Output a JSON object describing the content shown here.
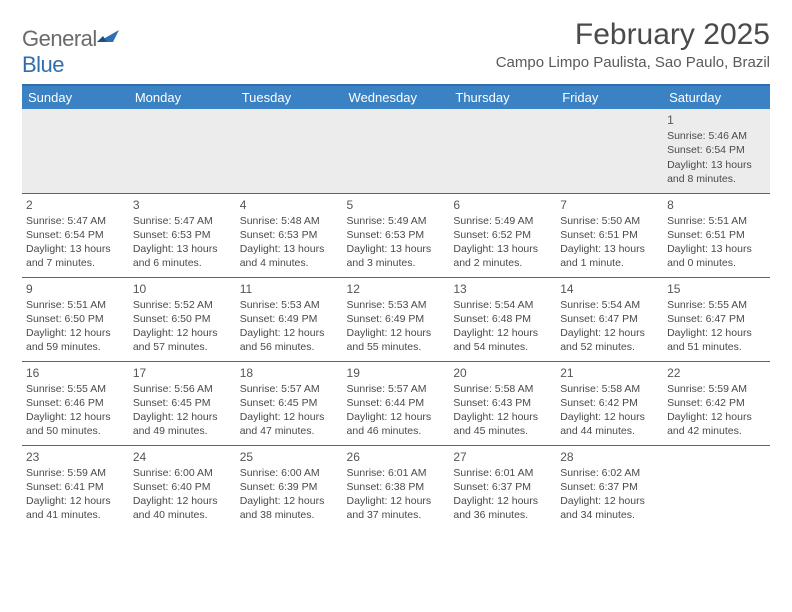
{
  "brand": {
    "name_gray": "General",
    "name_blue": "Blue"
  },
  "title": "February 2025",
  "location": "Campo Limpo Paulista, Sao Paulo, Brazil",
  "colors": {
    "accent": "#2f6fb0",
    "header_bg": "#3b82c4",
    "first_row_bg": "#ececec",
    "text": "#4a4a4a"
  },
  "day_headers": [
    "Sunday",
    "Monday",
    "Tuesday",
    "Wednesday",
    "Thursday",
    "Friday",
    "Saturday"
  ],
  "weeks": [
    [
      null,
      null,
      null,
      null,
      null,
      null,
      {
        "n": "1",
        "sr": "Sunrise: 5:46 AM",
        "ss": "Sunset: 6:54 PM",
        "d1": "Daylight: 13 hours",
        "d2": "and 8 minutes."
      }
    ],
    [
      {
        "n": "2",
        "sr": "Sunrise: 5:47 AM",
        "ss": "Sunset: 6:54 PM",
        "d1": "Daylight: 13 hours",
        "d2": "and 7 minutes."
      },
      {
        "n": "3",
        "sr": "Sunrise: 5:47 AM",
        "ss": "Sunset: 6:53 PM",
        "d1": "Daylight: 13 hours",
        "d2": "and 6 minutes."
      },
      {
        "n": "4",
        "sr": "Sunrise: 5:48 AM",
        "ss": "Sunset: 6:53 PM",
        "d1": "Daylight: 13 hours",
        "d2": "and 4 minutes."
      },
      {
        "n": "5",
        "sr": "Sunrise: 5:49 AM",
        "ss": "Sunset: 6:53 PM",
        "d1": "Daylight: 13 hours",
        "d2": "and 3 minutes."
      },
      {
        "n": "6",
        "sr": "Sunrise: 5:49 AM",
        "ss": "Sunset: 6:52 PM",
        "d1": "Daylight: 13 hours",
        "d2": "and 2 minutes."
      },
      {
        "n": "7",
        "sr": "Sunrise: 5:50 AM",
        "ss": "Sunset: 6:51 PM",
        "d1": "Daylight: 13 hours",
        "d2": "and 1 minute."
      },
      {
        "n": "8",
        "sr": "Sunrise: 5:51 AM",
        "ss": "Sunset: 6:51 PM",
        "d1": "Daylight: 13 hours",
        "d2": "and 0 minutes."
      }
    ],
    [
      {
        "n": "9",
        "sr": "Sunrise: 5:51 AM",
        "ss": "Sunset: 6:50 PM",
        "d1": "Daylight: 12 hours",
        "d2": "and 59 minutes."
      },
      {
        "n": "10",
        "sr": "Sunrise: 5:52 AM",
        "ss": "Sunset: 6:50 PM",
        "d1": "Daylight: 12 hours",
        "d2": "and 57 minutes."
      },
      {
        "n": "11",
        "sr": "Sunrise: 5:53 AM",
        "ss": "Sunset: 6:49 PM",
        "d1": "Daylight: 12 hours",
        "d2": "and 56 minutes."
      },
      {
        "n": "12",
        "sr": "Sunrise: 5:53 AM",
        "ss": "Sunset: 6:49 PM",
        "d1": "Daylight: 12 hours",
        "d2": "and 55 minutes."
      },
      {
        "n": "13",
        "sr": "Sunrise: 5:54 AM",
        "ss": "Sunset: 6:48 PM",
        "d1": "Daylight: 12 hours",
        "d2": "and 54 minutes."
      },
      {
        "n": "14",
        "sr": "Sunrise: 5:54 AM",
        "ss": "Sunset: 6:47 PM",
        "d1": "Daylight: 12 hours",
        "d2": "and 52 minutes."
      },
      {
        "n": "15",
        "sr": "Sunrise: 5:55 AM",
        "ss": "Sunset: 6:47 PM",
        "d1": "Daylight: 12 hours",
        "d2": "and 51 minutes."
      }
    ],
    [
      {
        "n": "16",
        "sr": "Sunrise: 5:55 AM",
        "ss": "Sunset: 6:46 PM",
        "d1": "Daylight: 12 hours",
        "d2": "and 50 minutes."
      },
      {
        "n": "17",
        "sr": "Sunrise: 5:56 AM",
        "ss": "Sunset: 6:45 PM",
        "d1": "Daylight: 12 hours",
        "d2": "and 49 minutes."
      },
      {
        "n": "18",
        "sr": "Sunrise: 5:57 AM",
        "ss": "Sunset: 6:45 PM",
        "d1": "Daylight: 12 hours",
        "d2": "and 47 minutes."
      },
      {
        "n": "19",
        "sr": "Sunrise: 5:57 AM",
        "ss": "Sunset: 6:44 PM",
        "d1": "Daylight: 12 hours",
        "d2": "and 46 minutes."
      },
      {
        "n": "20",
        "sr": "Sunrise: 5:58 AM",
        "ss": "Sunset: 6:43 PM",
        "d1": "Daylight: 12 hours",
        "d2": "and 45 minutes."
      },
      {
        "n": "21",
        "sr": "Sunrise: 5:58 AM",
        "ss": "Sunset: 6:42 PM",
        "d1": "Daylight: 12 hours",
        "d2": "and 44 minutes."
      },
      {
        "n": "22",
        "sr": "Sunrise: 5:59 AM",
        "ss": "Sunset: 6:42 PM",
        "d1": "Daylight: 12 hours",
        "d2": "and 42 minutes."
      }
    ],
    [
      {
        "n": "23",
        "sr": "Sunrise: 5:59 AM",
        "ss": "Sunset: 6:41 PM",
        "d1": "Daylight: 12 hours",
        "d2": "and 41 minutes."
      },
      {
        "n": "24",
        "sr": "Sunrise: 6:00 AM",
        "ss": "Sunset: 6:40 PM",
        "d1": "Daylight: 12 hours",
        "d2": "and 40 minutes."
      },
      {
        "n": "25",
        "sr": "Sunrise: 6:00 AM",
        "ss": "Sunset: 6:39 PM",
        "d1": "Daylight: 12 hours",
        "d2": "and 38 minutes."
      },
      {
        "n": "26",
        "sr": "Sunrise: 6:01 AM",
        "ss": "Sunset: 6:38 PM",
        "d1": "Daylight: 12 hours",
        "d2": "and 37 minutes."
      },
      {
        "n": "27",
        "sr": "Sunrise: 6:01 AM",
        "ss": "Sunset: 6:37 PM",
        "d1": "Daylight: 12 hours",
        "d2": "and 36 minutes."
      },
      {
        "n": "28",
        "sr": "Sunrise: 6:02 AM",
        "ss": "Sunset: 6:37 PM",
        "d1": "Daylight: 12 hours",
        "d2": "and 34 minutes."
      },
      null
    ]
  ]
}
